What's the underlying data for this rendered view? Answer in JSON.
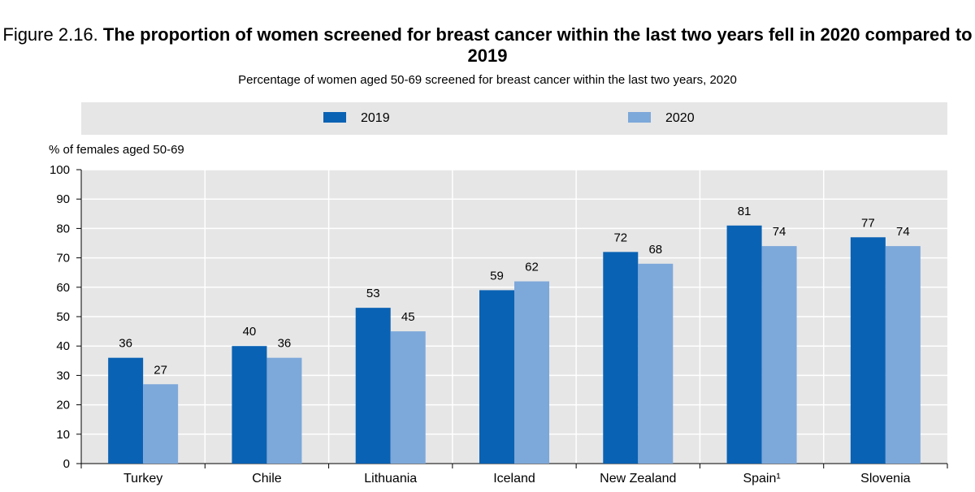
{
  "title": {
    "prefix": "Figure 2.16.",
    "main": "The proportion of women screened for breast cancer within the last two years fell in 2020 compared to 2019"
  },
  "chart_data": {
    "type": "bar",
    "title": "The proportion of women screened for breast cancer within the last two years fell in 2020 compared to 2019",
    "subtitle": "Percentage of women aged 50-69 screened for breast cancer within the last two years, 2020",
    "ylabel": "% of females aged 50-69",
    "xlabel": "",
    "ylim": [
      0,
      100
    ],
    "yticks": [
      0,
      10,
      20,
      30,
      40,
      50,
      60,
      70,
      80,
      90,
      100
    ],
    "grid": true,
    "legend_position": "top",
    "categories": [
      "Turkey",
      "Chile",
      "Lithuania",
      "Iceland",
      "New Zealand",
      "Spain¹",
      "Slovenia"
    ],
    "series": [
      {
        "name": "2019",
        "color": "#0a62b4",
        "values": [
          36,
          40,
          53,
          59,
          72,
          81,
          77
        ]
      },
      {
        "name": "2020",
        "color": "#7da8da",
        "values": [
          27,
          36,
          45,
          62,
          68,
          74,
          74
        ]
      }
    ]
  },
  "colors": {
    "plot_background": "#e6e6e6",
    "legend_background": "#e6e6e6",
    "gridline": "#ffffff"
  }
}
